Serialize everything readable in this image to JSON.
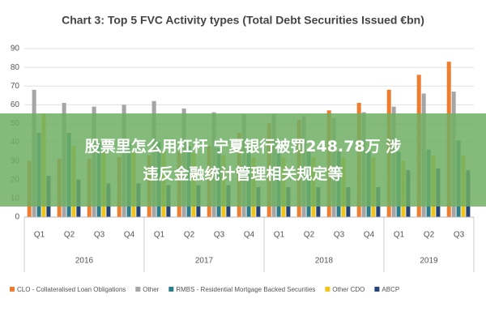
{
  "chart_data": {
    "type": "bar",
    "title": "Chart 3: Top 5 FVC Activity types (Total Debt Securities Issued €bn)",
    "groups": [
      {
        "label": "2016",
        "categories": [
          "Q1",
          "Q2",
          "Q3",
          "Q4"
        ]
      },
      {
        "label": "2017",
        "categories": [
          "Q1",
          "Q2",
          "Q3",
          "Q4"
        ]
      },
      {
        "label": "2018",
        "categories": [
          "Q1",
          "Q2",
          "Q3",
          "Q4"
        ]
      },
      {
        "label": "2019",
        "categories": [
          "Q1",
          "Q2",
          "Q3"
        ]
      }
    ],
    "series": [
      {
        "name": "CLO - Collateralised Loan Obligations",
        "color": "#ed7d31",
        "values": [
          30,
          31,
          31,
          32,
          33,
          35,
          38,
          45,
          50,
          52,
          57,
          61,
          68,
          76,
          83
        ]
      },
      {
        "name": "Other",
        "color": "#a5a5a5",
        "values": [
          68,
          61,
          59,
          60,
          62,
          58,
          56,
          55,
          55,
          54,
          53,
          56,
          59,
          66,
          67
        ]
      },
      {
        "name": "RMBS - Residential Mortgage Backed Securities",
        "color": "#2e7d8c",
        "values": [
          45,
          45,
          40,
          40,
          40,
          38,
          37,
          37,
          36,
          35,
          35,
          35,
          35,
          36,
          41
        ]
      },
      {
        "name": "Other CDO",
        "color": "#f0c419",
        "values": [
          55,
          38,
          35,
          35,
          35,
          34,
          33,
          32,
          32,
          32,
          32,
          32,
          30,
          33,
          33
        ]
      },
      {
        "name": "ABCP",
        "color": "#264478",
        "values": [
          22,
          20,
          18,
          18,
          17,
          17,
          17,
          16,
          16,
          16,
          16,
          16,
          25,
          26,
          25
        ]
      }
    ],
    "ylim": [
      0,
      90
    ],
    "yticks": [
      0,
      10,
      20,
      30,
      40,
      50,
      60,
      70,
      80,
      90
    ],
    "grid": true
  },
  "banner": {
    "lines": [
      "股票里怎么用杠杆 宁夏银行被罚248.78万 涉",
      "违反金融统计管理相关规定等"
    ]
  }
}
